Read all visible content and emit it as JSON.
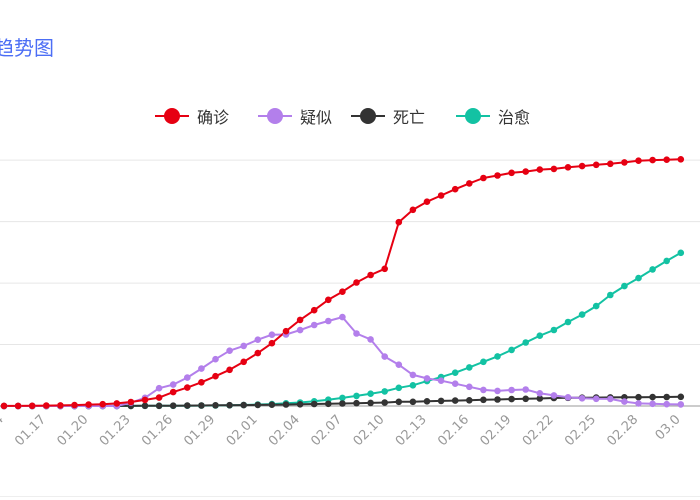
{
  "page": {
    "title": "趋势图"
  },
  "legend": [
    {
      "label": "确诊",
      "color": "#e60012"
    },
    {
      "label": "疑似",
      "color": "#b37feb"
    },
    {
      "label": "死亡",
      "color": "#333333"
    },
    {
      "label": "治愈",
      "color": "#13c2a3"
    }
  ],
  "chart_data": {
    "type": "line",
    "title": "趋势图",
    "grid": true,
    "legend_position": "top-center",
    "x": [
      "01.14",
      "01.15",
      "01.16",
      "01.17",
      "01.18",
      "01.19",
      "01.20",
      "01.21",
      "01.22",
      "01.23",
      "01.24",
      "01.25",
      "01.26",
      "01.27",
      "01.28",
      "01.29",
      "01.30",
      "01.31",
      "02.01",
      "02.02",
      "02.03",
      "02.04",
      "02.05",
      "02.06",
      "02.07",
      "02.08",
      "02.09",
      "02.10",
      "02.11",
      "02.12",
      "02.13",
      "02.14",
      "02.15",
      "02.16",
      "02.17",
      "02.18",
      "02.19",
      "02.20",
      "02.21",
      "02.22",
      "02.23",
      "02.24",
      "02.25",
      "02.26",
      "02.27",
      "02.28",
      "02.29",
      "03.01",
      "03.02"
    ],
    "xtick_labels": [
      "01.14",
      "01.17",
      "01.20",
      "01.23",
      "01.26",
      "01.29",
      "02.01",
      "02.04",
      "02.07",
      "02.10",
      "02.13",
      "02.16",
      "02.19",
      "02.22",
      "02.25",
      "02.28",
      "03.0"
    ],
    "ylim": [
      0,
      82000
    ],
    "yticks": [
      0,
      20000,
      40000,
      60000,
      80000
    ],
    "series": [
      {
        "name": "确诊",
        "color": "#e60012",
        "values": [
          41,
          45,
          62,
          121,
          198,
          291,
          440,
          571,
          830,
          1287,
          1975,
          2744,
          4515,
          5974,
          7711,
          9692,
          11791,
          14380,
          17205,
          20438,
          24324,
          28018,
          31161,
          34546,
          37198,
          40171,
          42638,
          44653,
          59804,
          63851,
          66492,
          68500,
          70548,
          72436,
          74185,
          75002,
          75891,
          76288,
          76936,
          77150,
          77658,
          78064,
          78497,
          78824,
          79251,
          79824,
          80026,
          80151,
          80270
        ]
      },
      {
        "name": "疑似",
        "color": "#b37feb",
        "values": [
          0,
          0,
          0,
          0,
          0,
          0,
          0,
          0,
          0,
          1072,
          2684,
          5794,
          6973,
          9239,
          12167,
          15238,
          17988,
          19544,
          21558,
          23214,
          23260,
          24702,
          26359,
          27657,
          28942,
          23589,
          21675,
          16067,
          13435,
          10109,
          8969,
          8228,
          7264,
          6242,
          5248,
          4922,
          5206,
          5365,
          4148,
          3434,
          2824,
          2491,
          2358,
          2308,
          1418,
          851,
          715,
          587,
          522
        ]
      },
      {
        "name": "死亡",
        "color": "#333333",
        "values": [
          1,
          2,
          2,
          3,
          4,
          6,
          9,
          17,
          25,
          41,
          56,
          80,
          106,
          132,
          170,
          213,
          259,
          304,
          361,
          425,
          490,
          563,
          636,
          722,
          811,
          908,
          1016,
          1113,
          1367,
          1380,
          1523,
          1665,
          1770,
          1868,
          2004,
          2118,
          2236,
          2345,
          2442,
          2592,
          2663,
          2715,
          2744,
          2788,
          2835,
          2870,
          2912,
          2943,
          2981
        ]
      },
      {
        "name": "治愈",
        "color": "#13c2a3",
        "values": [
          0,
          0,
          0,
          0,
          0,
          0,
          0,
          0,
          0,
          38,
          49,
          51,
          60,
          103,
          124,
          171,
          243,
          328,
          475,
          632,
          892,
          1153,
          1540,
          2050,
          2649,
          3281,
          3996,
          4740,
          5911,
          6723,
          8096,
          9419,
          10844,
          12552,
          14376,
          16155,
          18264,
          20659,
          22888,
          24734,
          27323,
          29745,
          32495,
          36117,
          39002,
          41625,
          44462,
          47204,
          49856
        ]
      }
    ]
  }
}
